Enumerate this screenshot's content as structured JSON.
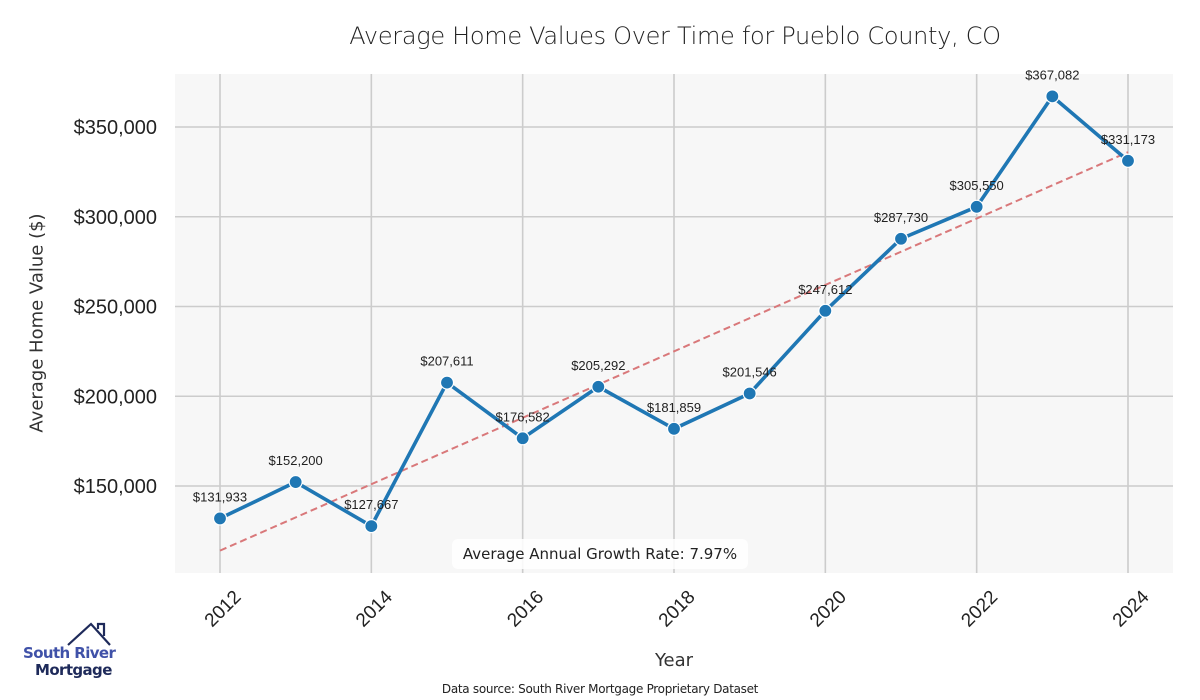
{
  "chart_data": {
    "type": "line",
    "title": "Average Home Values Over Time for Pueblo County, CO",
    "xlabel": "Year",
    "ylabel": "Average Home Value ($)",
    "x": [
      2012,
      2013,
      2014,
      2015,
      2016,
      2017,
      2018,
      2019,
      2020,
      2021,
      2022,
      2023,
      2024
    ],
    "series": [
      {
        "name": "Average Home Value",
        "color": "#1f77b4",
        "values": [
          131933,
          152200,
          127667,
          207611,
          176582,
          205292,
          181859,
          201546,
          247612,
          287730,
          305550,
          367082,
          331173
        ],
        "labels": [
          "$131,933",
          "$152,200",
          "$127,667",
          "$207,611",
          "$176,582",
          "$205,292",
          "$181,859",
          "$201,546",
          "$247,612",
          "$287,730",
          "$305,550",
          "$367,082",
          "$331,173"
        ]
      }
    ],
    "trendline": {
      "style": "dashed",
      "color": "#d9787a",
      "start": [
        2012,
        114000
      ],
      "end": [
        2024,
        336000
      ]
    },
    "xticks": [
      2012,
      2014,
      2016,
      2018,
      2020,
      2022,
      2024
    ],
    "xtick_labels": [
      "2012",
      "2014",
      "2016",
      "2018",
      "2020",
      "2022",
      "2024"
    ],
    "yticks": [
      150000,
      200000,
      250000,
      300000,
      350000
    ],
    "ytick_labels": [
      "$150,000",
      "$200,000",
      "$250,000",
      "$300,000",
      "$350,000"
    ],
    "xlim": [
      2011.7,
      2024.3
    ],
    "ylim": [
      104000,
      380000
    ],
    "grid": true,
    "annotation": "Average Annual Growth Rate: 7.97%"
  },
  "footer": {
    "source": "Data source: South River Mortgage Proprietary Dataset"
  },
  "logo": {
    "line1": "South River",
    "line2": "Mortgage"
  },
  "colors": {
    "plot_bg": "#f7f7f7",
    "grid": "#cccccc",
    "line": "#1f77b4",
    "trend": "#d9787a"
  }
}
